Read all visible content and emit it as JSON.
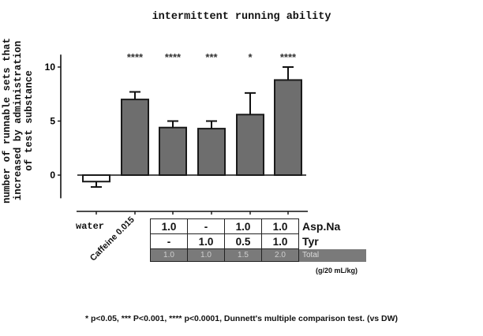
{
  "title": "intermittent running ability",
  "y_axis_label_lines": [
    "number of runnable sets that",
    "increased by administration",
    "of test substance"
  ],
  "x_categories": {
    "water": "water",
    "caffeine": "Caffeine 0.015"
  },
  "dose_table": {
    "rows": [
      {
        "label": "Asp.Na",
        "values": [
          "1.0",
          "-",
          "1.0",
          "1.0"
        ]
      },
      {
        "label": "Tyr",
        "values": [
          "-",
          "1.0",
          "0.5",
          "1.0"
        ]
      },
      {
        "label": "Total",
        "values": [
          "1.0",
          "1.0",
          "1.5",
          "2.0"
        ]
      }
    ],
    "units": "(g/20 mL/kg)"
  },
  "footnote": "* p<0.05,  *** P<0.001, **** p<0.0001, Dunnett's multiple comparison test. (vs DW)",
  "colors": {
    "bar_fill": "#6e6e6e",
    "bar_stroke": "#1a1a1a",
    "water_fill": "#ffffff",
    "total_row_bg": "#7a7a7a"
  },
  "chart_data": {
    "type": "bar",
    "title": "intermittent running ability",
    "xlabel": "",
    "ylabel": "number of runnable sets that increased by administration of test substance",
    "ylim": [
      -2,
      11
    ],
    "yticks": [
      0,
      5,
      10
    ],
    "grid": false,
    "categories": [
      "water",
      "Caffeine 0.015",
      "Asp.Na 1.0",
      "Tyr 1.0",
      "Asp.Na 1.0 + Tyr 0.5",
      "Asp.Na 1.0 + Tyr 1.0"
    ],
    "values": [
      -0.6,
      7.0,
      4.4,
      4.3,
      5.6,
      8.8
    ],
    "error_upper": [
      -1.1,
      7.7,
      5.0,
      5.0,
      7.6,
      10.0
    ],
    "significance": [
      "",
      "****",
      "****",
      "***",
      "*",
      "****"
    ]
  }
}
